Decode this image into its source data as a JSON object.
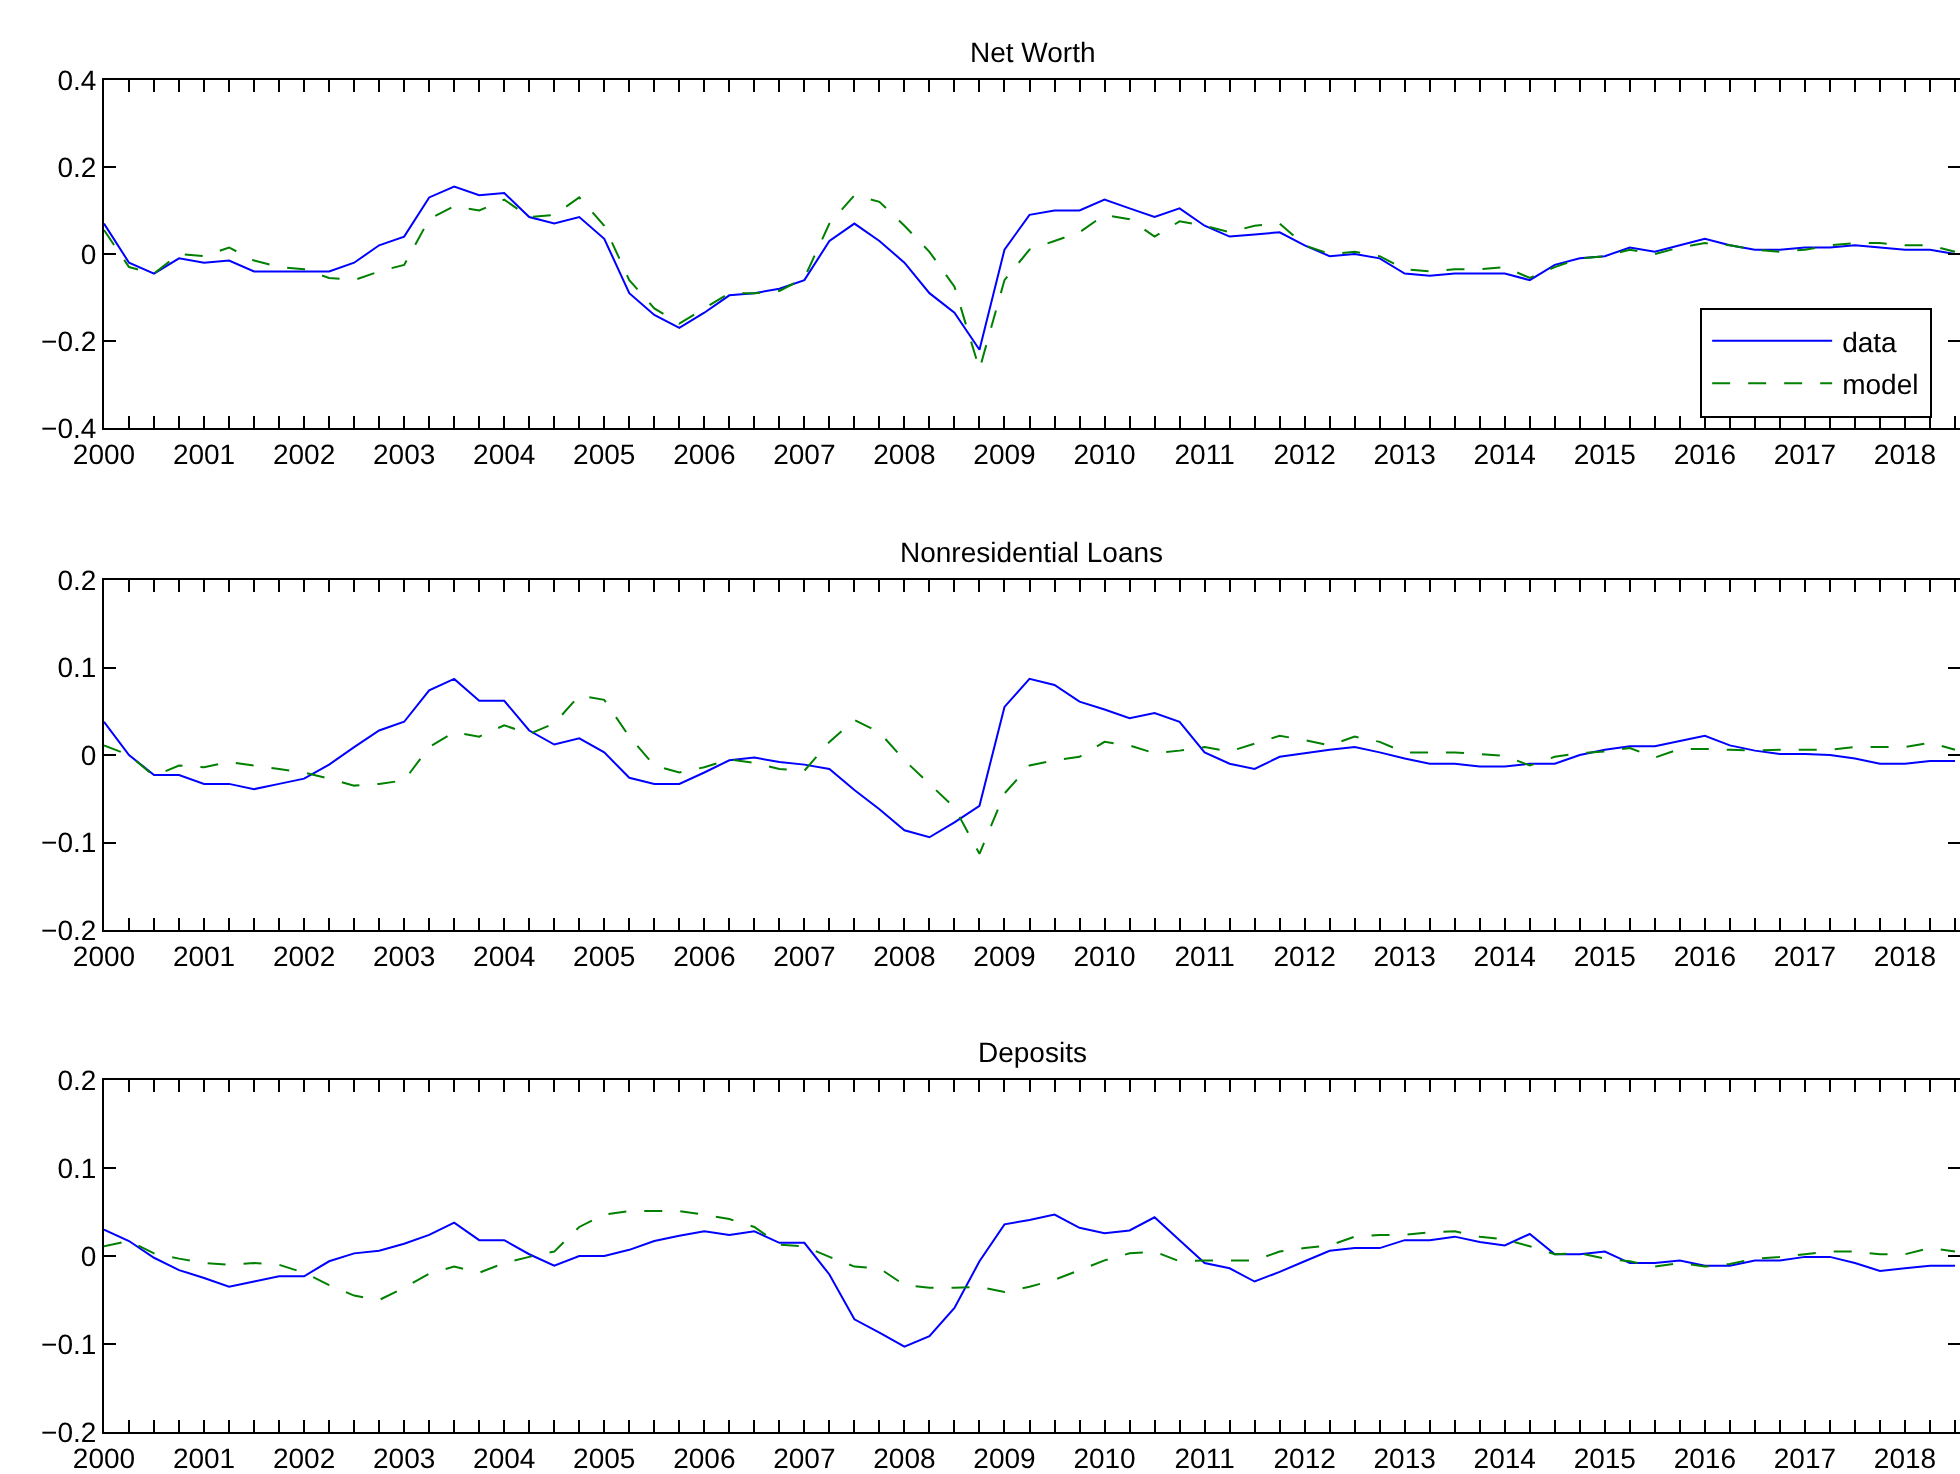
{
  "chart_data": [
    {
      "type": "line",
      "title": "Net Worth",
      "xlim": [
        2000,
        2018.55
      ],
      "ylim": [
        -0.4,
        0.4
      ],
      "yticks": [
        -0.4,
        -0.2,
        0,
        0.2,
        0.4
      ],
      "legend": "bottom right",
      "marker": "none",
      "xticks": [
        2000,
        {
          "value": 2000.25,
          "label": null
        },
        {
          "value": 2000.5,
          "label": null
        },
        {
          "value": 2000.75,
          "label": null
        },
        2001,
        {
          "value": 2001.25,
          "label": null
        },
        {
          "value": 2001.5,
          "label": null
        },
        {
          "value": 2001.75,
          "label": null
        },
        2002,
        {
          "value": 2002.25,
          "label": null
        },
        {
          "value": 2002.5,
          "label": null
        },
        {
          "value": 2002.75,
          "label": null
        },
        2003,
        {
          "value": 2003.25,
          "label": null
        },
        {
          "value": 2003.5,
          "label": null
        },
        {
          "value": 2003.75,
          "label": null
        },
        2004,
        {
          "value": 2004.25,
          "label": null
        },
        {
          "value": 2004.5,
          "label": null
        },
        {
          "value": 2004.75,
          "label": null
        },
        2005,
        {
          "value": 2005.25,
          "label": null
        },
        {
          "value": 2005.5,
          "label": null
        },
        {
          "value": 2005.75,
          "label": null
        },
        2006,
        {
          "value": 2006.25,
          "label": null
        },
        {
          "value": 2006.5,
          "label": null
        },
        {
          "value": 2006.75,
          "label": null
        },
        2007,
        {
          "value": 2007.25,
          "label": null
        },
        {
          "value": 2007.5,
          "label": null
        },
        {
          "value": 2007.75,
          "label": null
        },
        2008,
        {
          "value": 2008.25,
          "label": null
        },
        {
          "value": 2008.5,
          "label": null
        },
        {
          "value": 2008.75,
          "label": null
        },
        2009,
        {
          "value": 2009.25,
          "label": null
        },
        {
          "value": 2009.5,
          "label": null
        },
        {
          "value": 2009.75,
          "label": null
        },
        2010,
        {
          "value": 2010.25,
          "label": null
        },
        {
          "value": 2010.5,
          "label": null
        },
        {
          "value": 2010.75,
          "label": null
        },
        2011,
        {
          "value": 2011.25,
          "label": null
        },
        {
          "value": 2011.5,
          "label": null
        },
        {
          "value": 2011.75,
          "label": null
        },
        2012,
        {
          "value": 2012.25,
          "label": null
        },
        {
          "value": 2012.5,
          "label": null
        },
        {
          "value": 2012.75,
          "label": null
        },
        2013,
        {
          "value": 2013.25,
          "label": null
        },
        {
          "value": 2013.5,
          "label": null
        },
        {
          "value": 2013.75,
          "label": null
        },
        2014,
        {
          "value": 2014.25,
          "label": null
        },
        {
          "value": 2014.5,
          "label": null
        },
        {
          "value": 2014.75,
          "label": null
        },
        2015,
        {
          "value": 2015.25,
          "label": null
        },
        {
          "value": 2015.5,
          "label": null
        },
        {
          "value": 2015.75,
          "label": null
        },
        2016,
        {
          "value": 2016.25,
          "label": null
        },
        {
          "value": 2016.5,
          "label": null
        },
        {
          "value": 2016.75,
          "label": null
        },
        2017,
        {
          "value": 2017.25,
          "label": null
        },
        {
          "value": 2017.5,
          "label": null
        },
        {
          "value": 2017.75,
          "label": null
        },
        2018,
        {
          "value": 2018.25,
          "label": null
        },
        {
          "value": 2018.5,
          "label": null
        }
      ],
      "x": [
        2000,
        2000.25,
        2000.5,
        2000.75,
        2001,
        2001.25,
        2001.5,
        2001.75,
        2002,
        2002.25,
        2002.5,
        2002.75,
        2003,
        2003.25,
        2003.5,
        2003.75,
        2004,
        2004.25,
        2004.5,
        2004.75,
        2005,
        2005.25,
        2005.5,
        2005.75,
        2006,
        2006.25,
        2006.5,
        2006.75,
        2007,
        2007.25,
        2007.5,
        2007.75,
        2008,
        2008.25,
        2008.5,
        2008.75,
        2009,
        2009.25,
        2009.5,
        2009.75,
        2010,
        2010.25,
        2010.5,
        2010.75,
        2011,
        2011.25,
        2011.5,
        2011.75,
        2012,
        2012.25,
        2012.5,
        2012.75,
        2013,
        2013.25,
        2013.5,
        2013.75,
        2014,
        2014.25,
        2014.5,
        2014.75,
        2015,
        2015.25,
        2015.5,
        2015.75,
        2016,
        2016.25,
        2016.5,
        2016.75,
        2017,
        2017.25,
        2017.5,
        2017.75,
        2018,
        2018.25,
        2018.5
      ],
      "series": [
        {
          "name": "data",
          "color": "#0000ff",
          "line_style": "solid",
          "values": [
            0.07,
            -0.02,
            -0.045,
            -0.01,
            -0.02,
            -0.015,
            -0.04,
            -0.04,
            -0.04,
            -0.04,
            -0.02,
            0.02,
            0.04,
            0.13,
            0.155,
            0.135,
            0.14,
            0.085,
            0.07,
            0.085,
            0.035,
            -0.09,
            -0.14,
            -0.17,
            -0.135,
            -0.095,
            -0.09,
            -0.08,
            -0.06,
            0.03,
            0.07,
            0.03,
            -0.02,
            -0.09,
            -0.135,
            -0.22,
            0.01,
            0.09,
            0.1,
            0.1,
            0.125,
            0.105,
            0.085,
            0.105,
            0.065,
            0.04,
            0.045,
            0.05,
            0.02,
            -0.005,
            0.0,
            -0.01,
            -0.045,
            -0.05,
            -0.045,
            -0.045,
            -0.045,
            -0.06,
            -0.025,
            -0.01,
            -0.005,
            0.015,
            0.005,
            0.02,
            0.035,
            0.02,
            0.01,
            0.01,
            0.015,
            0.015,
            0.02,
            0.015,
            0.01,
            0.01,
            0.0
          ]
        },
        {
          "name": "model",
          "color": "#008000",
          "line_style": "dashed",
          "values": [
            0.055,
            -0.03,
            -0.045,
            0.0,
            -0.005,
            0.015,
            -0.015,
            -0.03,
            -0.035,
            -0.055,
            -0.06,
            -0.04,
            -0.025,
            0.08,
            0.11,
            0.1,
            0.125,
            0.085,
            0.09,
            0.13,
            0.065,
            -0.06,
            -0.125,
            -0.16,
            -0.125,
            -0.09,
            -0.09,
            -0.085,
            -0.055,
            0.07,
            0.135,
            0.12,
            0.065,
            0.005,
            -0.075,
            -0.265,
            -0.06,
            0.01,
            0.03,
            0.05,
            0.09,
            0.08,
            0.04,
            0.075,
            0.065,
            0.05,
            0.065,
            0.07,
            0.02,
            0.0,
            0.005,
            -0.005,
            -0.035,
            -0.04,
            -0.035,
            -0.035,
            -0.03,
            -0.055,
            -0.03,
            -0.01,
            -0.005,
            0.01,
            0.0,
            0.015,
            0.025,
            0.02,
            0.01,
            0.005,
            0.01,
            0.02,
            0.025,
            0.025,
            0.02,
            0.02,
            0.005
          ]
        }
      ]
    },
    {
      "type": "line",
      "title": "Nonresidential Loans",
      "xlim": [
        2000,
        2018.55
      ],
      "ylim": [
        -0.2,
        0.2
      ],
      "yticks": [
        -0.2,
        -0.1,
        0,
        0.1,
        0.2
      ],
      "marker": "none",
      "xticks": [
        2000,
        {
          "value": 2000.25,
          "label": null
        },
        {
          "value": 2000.5,
          "label": null
        },
        {
          "value": 2000.75,
          "label": null
        },
        2001,
        {
          "value": 2001.25,
          "label": null
        },
        {
          "value": 2001.5,
          "label": null
        },
        {
          "value": 2001.75,
          "label": null
        },
        2002,
        {
          "value": 2002.25,
          "label": null
        },
        {
          "value": 2002.5,
          "label": null
        },
        {
          "value": 2002.75,
          "label": null
        },
        2003,
        {
          "value": 2003.25,
          "label": null
        },
        {
          "value": 2003.5,
          "label": null
        },
        {
          "value": 2003.75,
          "label": null
        },
        2004,
        {
          "value": 2004.25,
          "label": null
        },
        {
          "value": 2004.5,
          "label": null
        },
        {
          "value": 2004.75,
          "label": null
        },
        2005,
        {
          "value": 2005.25,
          "label": null
        },
        {
          "value": 2005.5,
          "label": null
        },
        {
          "value": 2005.75,
          "label": null
        },
        2006,
        {
          "value": 2006.25,
          "label": null
        },
        {
          "value": 2006.5,
          "label": null
        },
        {
          "value": 2006.75,
          "label": null
        },
        2007,
        {
          "value": 2007.25,
          "label": null
        },
        {
          "value": 2007.5,
          "label": null
        },
        {
          "value": 2007.75,
          "label": null
        },
        2008,
        {
          "value": 2008.25,
          "label": null
        },
        {
          "value": 2008.5,
          "label": null
        },
        {
          "value": 2008.75,
          "label": null
        },
        2009,
        {
          "value": 2009.25,
          "label": null
        },
        {
          "value": 2009.5,
          "label": null
        },
        {
          "value": 2009.75,
          "label": null
        },
        2010,
        {
          "value": 2010.25,
          "label": null
        },
        {
          "value": 2010.5,
          "label": null
        },
        {
          "value": 2010.75,
          "label": null
        },
        2011,
        {
          "value": 2011.25,
          "label": null
        },
        {
          "value": 2011.5,
          "label": null
        },
        {
          "value": 2011.75,
          "label": null
        },
        2012,
        {
          "value": 2012.25,
          "label": null
        },
        {
          "value": 2012.5,
          "label": null
        },
        {
          "value": 2012.75,
          "label": null
        },
        2013,
        {
          "value": 2013.25,
          "label": null
        },
        {
          "value": 2013.5,
          "label": null
        },
        {
          "value": 2013.75,
          "label": null
        },
        2014,
        {
          "value": 2014.25,
          "label": null
        },
        {
          "value": 2014.5,
          "label": null
        },
        {
          "value": 2014.75,
          "label": null
        },
        2015,
        {
          "value": 2015.25,
          "label": null
        },
        {
          "value": 2015.5,
          "label": null
        },
        {
          "value": 2015.75,
          "label": null
        },
        2016,
        {
          "value": 2016.25,
          "label": null
        },
        {
          "value": 2016.5,
          "label": null
        },
        {
          "value": 2016.75,
          "label": null
        },
        2017,
        {
          "value": 2017.25,
          "label": null
        },
        {
          "value": 2017.5,
          "label": null
        },
        {
          "value": 2017.75,
          "label": null
        },
        2018,
        {
          "value": 2018.25,
          "label": null
        },
        {
          "value": 2018.5,
          "label": null
        }
      ],
      "x": [
        2000,
        2000.25,
        2000.5,
        2000.75,
        2001,
        2001.25,
        2001.5,
        2001.75,
        2002,
        2002.25,
        2002.5,
        2002.75,
        2003,
        2003.25,
        2003.5,
        2003.75,
        2004,
        2004.25,
        2004.5,
        2004.75,
        2005,
        2005.25,
        2005.5,
        2005.75,
        2006,
        2006.25,
        2006.5,
        2006.75,
        2007,
        2007.25,
        2007.5,
        2007.75,
        2008,
        2008.25,
        2008.5,
        2008.75,
        2009,
        2009.25,
        2009.5,
        2009.75,
        2010,
        2010.25,
        2010.5,
        2010.75,
        2011,
        2011.25,
        2011.5,
        2011.75,
        2012,
        2012.25,
        2012.5,
        2012.75,
        2013,
        2013.25,
        2013.5,
        2013.75,
        2014,
        2014.25,
        2014.5,
        2014.75,
        2015,
        2015.25,
        2015.5,
        2015.75,
        2016,
        2016.25,
        2016.5,
        2016.75,
        2017,
        2017.25,
        2017.5,
        2017.75,
        2018,
        2018.25,
        2018.5
      ],
      "series": [
        {
          "color": "#0000ff",
          "line_style": "solid",
          "values": [
            0.038,
            0.0,
            -0.023,
            -0.023,
            -0.033,
            -0.033,
            -0.039,
            -0.033,
            -0.027,
            -0.011,
            0.009,
            0.028,
            0.038,
            0.074,
            0.087,
            0.062,
            0.062,
            0.028,
            0.012,
            0.019,
            0.003,
            -0.026,
            -0.033,
            -0.033,
            -0.02,
            -0.006,
            -0.003,
            -0.008,
            -0.011,
            -0.016,
            -0.04,
            -0.062,
            -0.086,
            -0.094,
            -0.077,
            -0.058,
            0.055,
            0.087,
            0.08,
            0.061,
            0.052,
            0.042,
            0.048,
            0.038,
            0.003,
            -0.01,
            -0.016,
            -0.002,
            0.002,
            0.006,
            0.009,
            0.003,
            -0.004,
            -0.01,
            -0.01,
            -0.013,
            -0.013,
            -0.01,
            -0.01,
            0.0,
            0.006,
            0.01,
            0.01,
            0.016,
            0.022,
            0.011,
            0.005,
            0.001,
            0.001,
            0.0,
            -0.004,
            -0.01,
            -0.01,
            -0.007,
            -0.007
          ]
        },
        {
          "color": "#008000",
          "line_style": "dashed",
          "values": [
            0.011,
            0.0,
            -0.024,
            -0.012,
            -0.014,
            -0.008,
            -0.012,
            -0.016,
            -0.02,
            -0.027,
            -0.035,
            -0.033,
            -0.029,
            0.009,
            0.026,
            0.021,
            0.034,
            0.024,
            0.036,
            0.068,
            0.063,
            0.021,
            -0.012,
            -0.02,
            -0.014,
            -0.005,
            -0.009,
            -0.016,
            -0.018,
            0.015,
            0.04,
            0.026,
            -0.006,
            -0.033,
            -0.06,
            -0.113,
            -0.044,
            -0.012,
            -0.006,
            -0.002,
            0.015,
            0.011,
            0.002,
            0.005,
            0.009,
            0.004,
            0.013,
            0.022,
            0.017,
            0.011,
            0.021,
            0.015,
            0.003,
            0.003,
            0.003,
            0.001,
            -0.001,
            -0.012,
            -0.002,
            0.002,
            0.004,
            0.008,
            -0.003,
            0.007,
            0.007,
            0.006,
            0.005,
            0.006,
            0.006,
            0.006,
            0.009,
            0.009,
            0.009,
            0.014,
            0.006
          ]
        }
      ]
    },
    {
      "type": "line",
      "title": "Deposits",
      "xlim": [
        2000,
        2018.55
      ],
      "ylim": [
        -0.2,
        0.2
      ],
      "yticks": [
        -0.2,
        -0.1,
        0,
        0.1,
        0.2
      ],
      "marker": "none",
      "xticks": [
        2000,
        {
          "value": 2000.25,
          "label": null
        },
        {
          "value": 2000.5,
          "label": null
        },
        {
          "value": 2000.75,
          "label": null
        },
        2001,
        {
          "value": 2001.25,
          "label": null
        },
        {
          "value": 2001.5,
          "label": null
        },
        {
          "value": 2001.75,
          "label": null
        },
        2002,
        {
          "value": 2002.25,
          "label": null
        },
        {
          "value": 2002.5,
          "label": null
        },
        {
          "value": 2002.75,
          "label": null
        },
        2003,
        {
          "value": 2003.25,
          "label": null
        },
        {
          "value": 2003.5,
          "label": null
        },
        {
          "value": 2003.75,
          "label": null
        },
        2004,
        {
          "value": 2004.25,
          "label": null
        },
        {
          "value": 2004.5,
          "label": null
        },
        {
          "value": 2004.75,
          "label": null
        },
        2005,
        {
          "value": 2005.25,
          "label": null
        },
        {
          "value": 2005.5,
          "label": null
        },
        {
          "value": 2005.75,
          "label": null
        },
        2006,
        {
          "value": 2006.25,
          "label": null
        },
        {
          "value": 2006.5,
          "label": null
        },
        {
          "value": 2006.75,
          "label": null
        },
        2007,
        {
          "value": 2007.25,
          "label": null
        },
        {
          "value": 2007.5,
          "label": null
        },
        {
          "value": 2007.75,
          "label": null
        },
        2008,
        {
          "value": 2008.25,
          "label": null
        },
        {
          "value": 2008.5,
          "label": null
        },
        {
          "value": 2008.75,
          "label": null
        },
        2009,
        {
          "value": 2009.25,
          "label": null
        },
        {
          "value": 2009.5,
          "label": null
        },
        {
          "value": 2009.75,
          "label": null
        },
        2010,
        {
          "value": 2010.25,
          "label": null
        },
        {
          "value": 2010.5,
          "label": null
        },
        {
          "value": 2010.75,
          "label": null
        },
        2011,
        {
          "value": 2011.25,
          "label": null
        },
        {
          "value": 2011.5,
          "label": null
        },
        {
          "value": 2011.75,
          "label": null
        },
        2012,
        {
          "value": 2012.25,
          "label": null
        },
        {
          "value": 2012.5,
          "label": null
        },
        {
          "value": 2012.75,
          "label": null
        },
        2013,
        {
          "value": 2013.25,
          "label": null
        },
        {
          "value": 2013.5,
          "label": null
        },
        {
          "value": 2013.75,
          "label": null
        },
        2014,
        {
          "value": 2014.25,
          "label": null
        },
        {
          "value": 2014.5,
          "label": null
        },
        {
          "value": 2014.75,
          "label": null
        },
        2015,
        {
          "value": 2015.25,
          "label": null
        },
        {
          "value": 2015.5,
          "label": null
        },
        {
          "value": 2015.75,
          "label": null
        },
        2016,
        {
          "value": 2016.25,
          "label": null
        },
        {
          "value": 2016.5,
          "label": null
        },
        {
          "value": 2016.75,
          "label": null
        },
        2017,
        {
          "value": 2017.25,
          "label": null
        },
        {
          "value": 2017.5,
          "label": null
        },
        {
          "value": 2017.75,
          "label": null
        },
        2018,
        {
          "value": 2018.25,
          "label": null
        },
        {
          "value": 2018.5,
          "label": null
        }
      ],
      "x": [
        2000,
        2000.25,
        2000.5,
        2000.75,
        2001,
        2001.25,
        2001.5,
        2001.75,
        2002,
        2002.25,
        2002.5,
        2002.75,
        2003,
        2003.25,
        2003.5,
        2003.75,
        2004,
        2004.25,
        2004.5,
        2004.75,
        2005,
        2005.25,
        2005.5,
        2005.75,
        2006,
        2006.25,
        2006.5,
        2006.75,
        2007,
        2007.25,
        2007.5,
        2007.75,
        2008,
        2008.25,
        2008.5,
        2008.75,
        2009,
        2009.25,
        2009.5,
        2009.75,
        2010,
        2010.25,
        2010.5,
        2010.75,
        2011,
        2011.25,
        2011.5,
        2011.75,
        2012,
        2012.25,
        2012.5,
        2012.75,
        2013,
        2013.25,
        2013.5,
        2013.75,
        2014,
        2014.25,
        2014.5,
        2014.75,
        2015,
        2015.25,
        2015.5,
        2015.75,
        2016,
        2016.25,
        2016.5,
        2016.75,
        2017,
        2017.25,
        2017.5,
        2017.75,
        2018,
        2018.25,
        2018.5
      ],
      "series": [
        {
          "color": "#0000ff",
          "line_style": "solid",
          "values": [
            0.03,
            0.017,
            -0.002,
            -0.016,
            -0.025,
            -0.035,
            -0.029,
            -0.023,
            -0.023,
            -0.006,
            0.003,
            0.006,
            0.014,
            0.024,
            0.038,
            0.018,
            0.018,
            0.002,
            -0.011,
            0.0,
            0.0,
            0.007,
            0.017,
            0.023,
            0.028,
            0.024,
            0.028,
            0.015,
            0.015,
            -0.021,
            -0.072,
            -0.087,
            -0.103,
            -0.091,
            -0.059,
            -0.006,
            0.036,
            0.041,
            0.047,
            0.032,
            0.026,
            0.029,
            0.044,
            0.018,
            -0.008,
            -0.014,
            -0.029,
            -0.018,
            -0.006,
            0.006,
            0.009,
            0.009,
            0.018,
            0.018,
            0.022,
            0.016,
            0.012,
            0.025,
            0.002,
            0.002,
            0.005,
            -0.008,
            -0.008,
            -0.005,
            -0.011,
            -0.011,
            -0.005,
            -0.005,
            -0.001,
            -0.001,
            -0.008,
            -0.017,
            -0.014,
            -0.011,
            -0.011
          ]
        },
        {
          "color": "#008000",
          "line_style": "dashed",
          "values": [
            0.011,
            0.017,
            0.003,
            -0.003,
            -0.008,
            -0.01,
            -0.008,
            -0.01,
            -0.019,
            -0.033,
            -0.045,
            -0.05,
            -0.036,
            -0.02,
            -0.012,
            -0.019,
            -0.008,
            -0.001,
            0.005,
            0.033,
            0.047,
            0.051,
            0.051,
            0.051,
            0.047,
            0.042,
            0.033,
            0.013,
            0.011,
            -0.001,
            -0.012,
            -0.014,
            -0.033,
            -0.036,
            -0.036,
            -0.035,
            -0.041,
            -0.035,
            -0.027,
            -0.016,
            -0.005,
            0.003,
            0.005,
            -0.006,
            -0.005,
            -0.005,
            -0.005,
            0.005,
            0.009,
            0.012,
            0.022,
            0.024,
            0.024,
            0.027,
            0.028,
            0.022,
            0.019,
            0.011,
            0.002,
            0.003,
            -0.003,
            -0.006,
            -0.012,
            -0.008,
            -0.012,
            -0.009,
            -0.003,
            -0.001,
            0.002,
            0.005,
            0.005,
            0.002,
            0.002,
            0.009,
            0.005
          ]
        }
      ]
    }
  ]
}
